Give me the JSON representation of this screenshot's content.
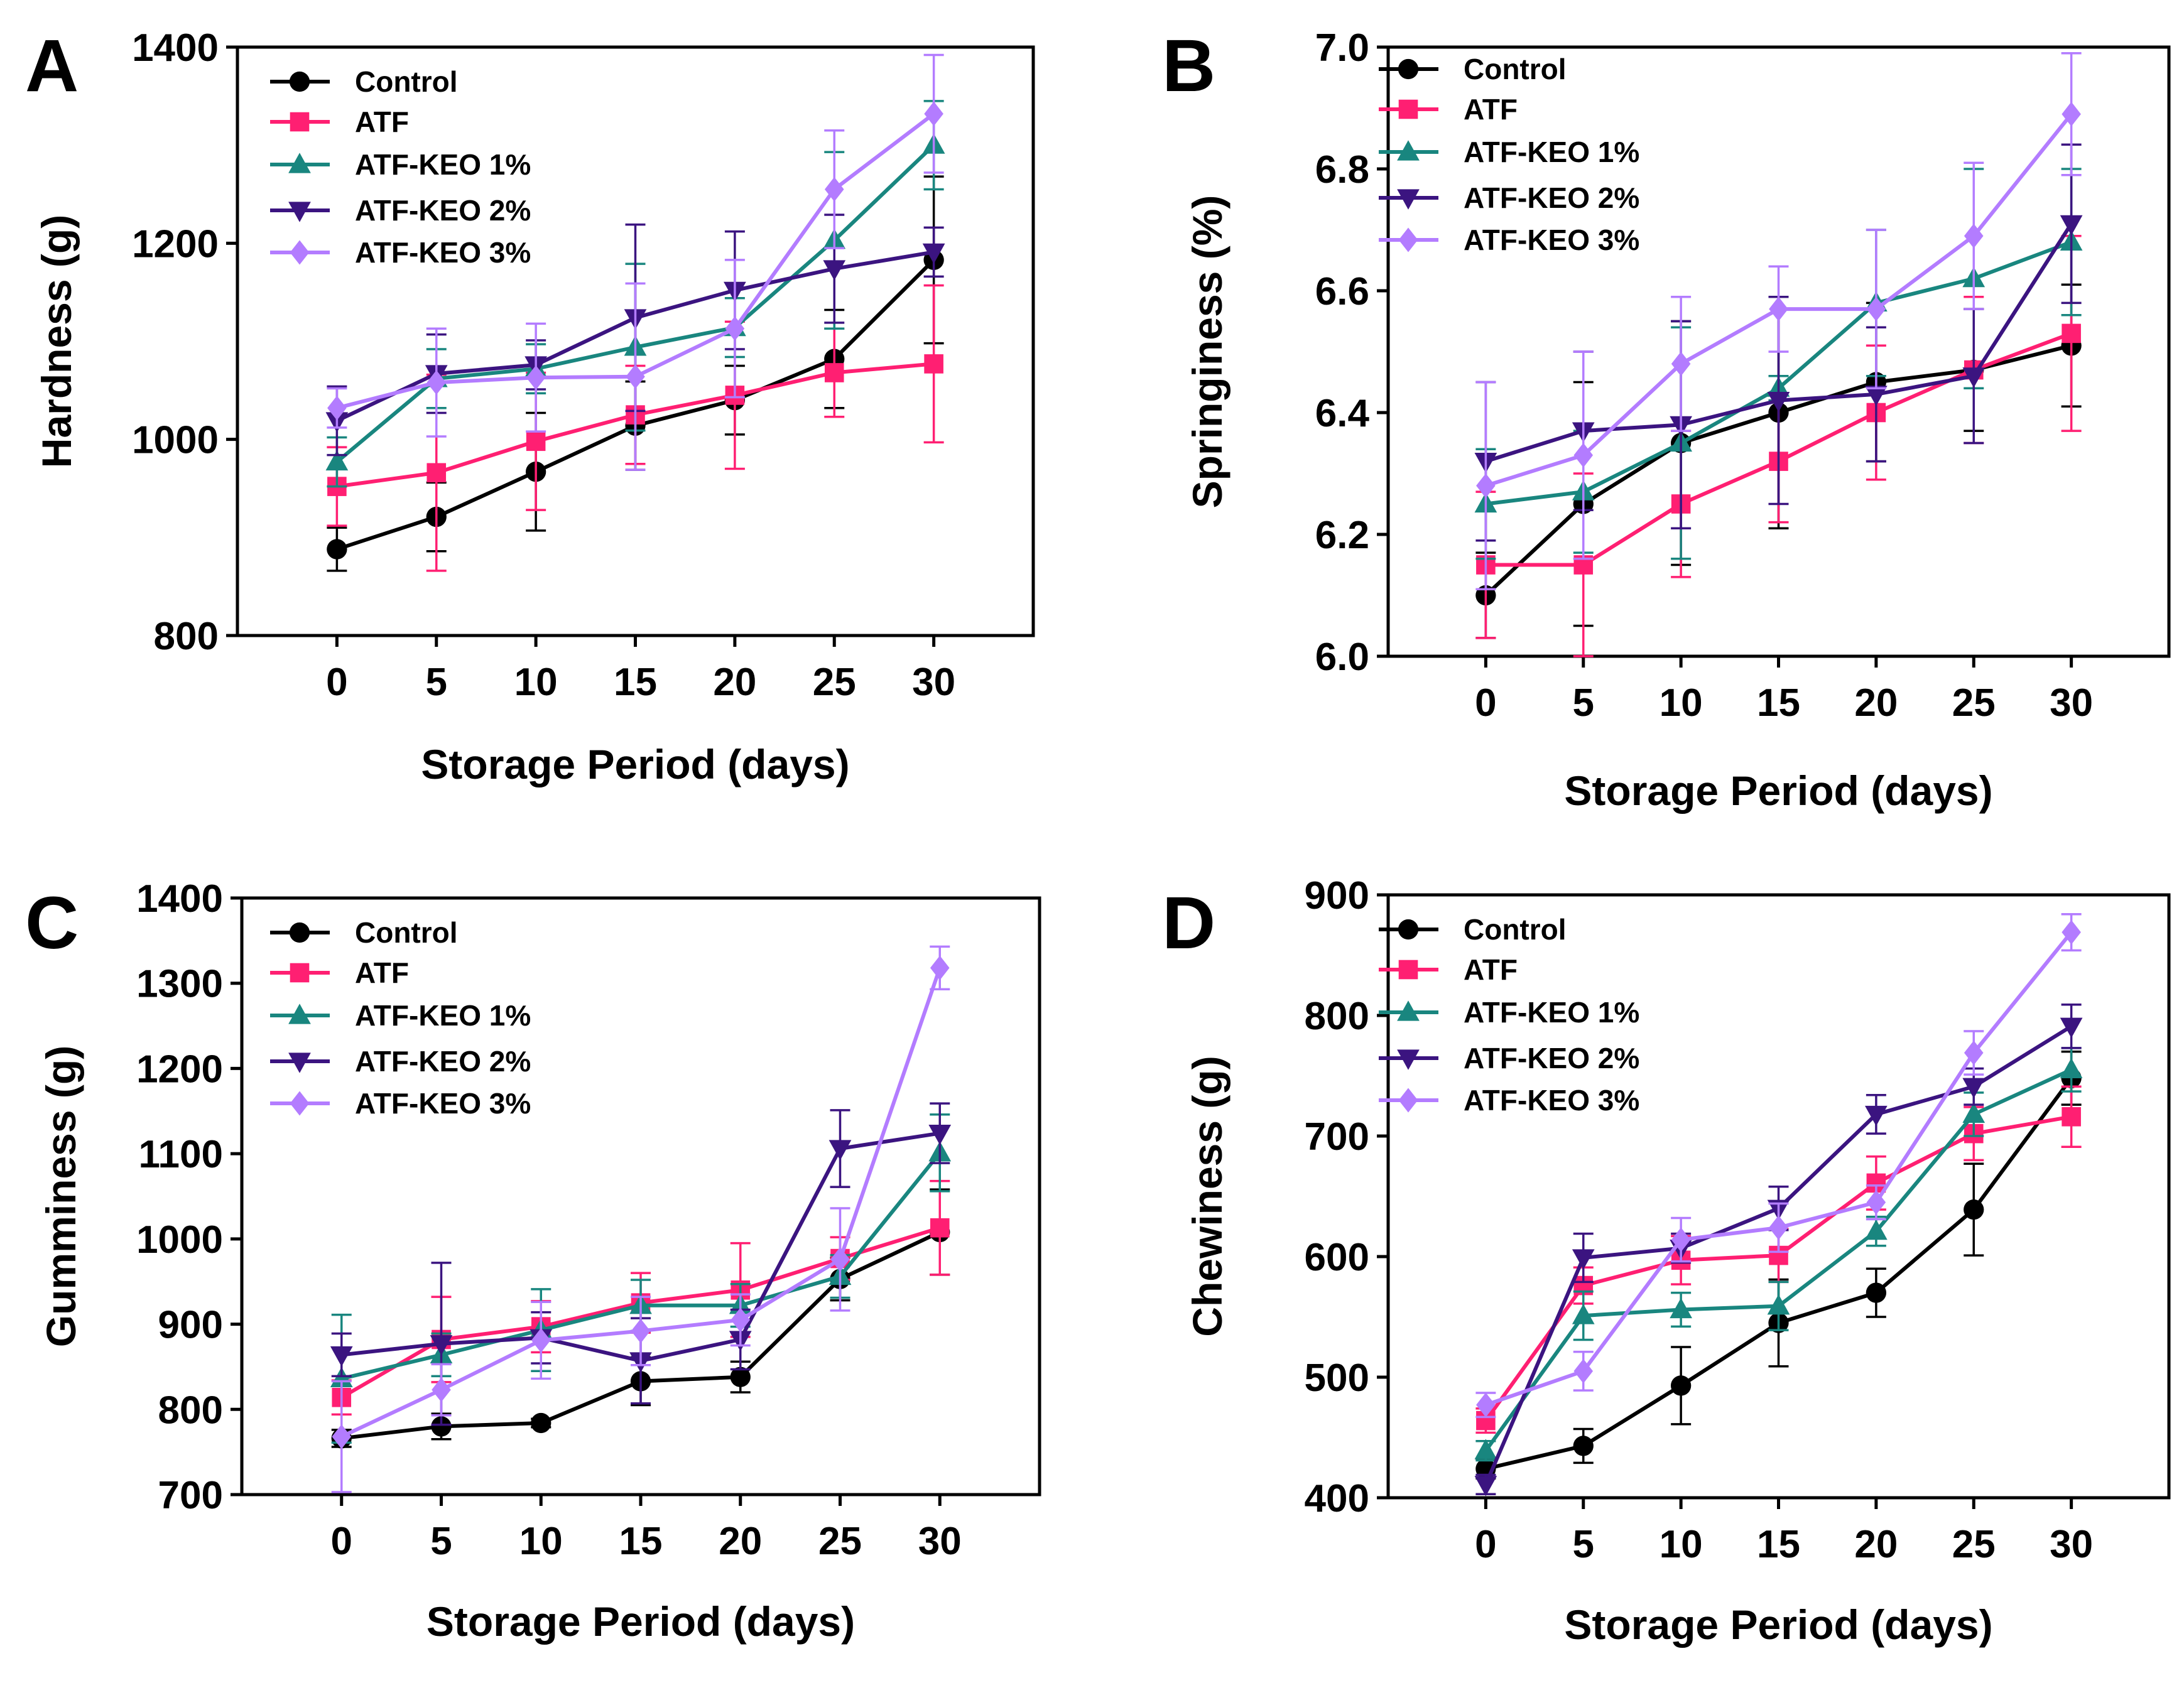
{
  "series_styles": [
    {
      "key": "control",
      "color": "#000000",
      "marker": "circle"
    },
    {
      "key": "atf",
      "color": "#ff1f72",
      "marker": "square"
    },
    {
      "key": "keo1",
      "color": "#19867f",
      "marker": "triangle-up"
    },
    {
      "key": "keo2",
      "color": "#3b1480",
      "marker": "triangle-down"
    },
    {
      "key": "keo3",
      "color": "#b37cff",
      "marker": "diamond"
    }
  ],
  "chart_data": [
    {
      "type": "line",
      "panel_label": "A",
      "xlabel": "Storage Period (days)",
      "ylabel": "Hardness (g)",
      "x": [
        0,
        5,
        10,
        15,
        20,
        25,
        30
      ],
      "xticks": [
        "0",
        "5",
        "10",
        "15",
        "20",
        "25",
        "30"
      ],
      "xlim": [
        -5,
        35
      ],
      "ylim": [
        800,
        1400
      ],
      "yticks": [
        800,
        1000,
        1200,
        1400
      ],
      "legend": "top-left",
      "grid": false,
      "series": [
        {
          "name": "Control",
          "values": [
            888,
            921,
            967,
            1014,
            1040,
            1082,
            1183
          ],
          "error": [
            22,
            35,
            60,
            45,
            35,
            50,
            85
          ]
        },
        {
          "name": "ATF",
          "values": [
            952,
            966,
            998,
            1025,
            1045,
            1068,
            1077
          ],
          "error": [
            40,
            100,
            70,
            50,
            75,
            45,
            80
          ]
        },
        {
          "name": "ATF-KEO 1%",
          "values": [
            977,
            1062,
            1072,
            1094,
            1114,
            1203,
            1300
          ],
          "error": [
            25,
            30,
            25,
            85,
            30,
            90,
            45
          ]
        },
        {
          "name": "ATF-KEO 2%",
          "values": [
            1019,
            1067,
            1076,
            1124,
            1152,
            1174,
            1191
          ],
          "error": [
            35,
            40,
            25,
            95,
            60,
            55,
            25
          ]
        },
        {
          "name": "ATF-KEO 3%",
          "values": [
            1032,
            1058,
            1063,
            1064,
            1113,
            1255,
            1332
          ],
          "error": [
            20,
            55,
            55,
            95,
            70,
            60,
            60
          ]
        }
      ]
    },
    {
      "type": "line",
      "panel_label": "B",
      "xlabel": "Storage Period (days)",
      "ylabel": "Springiness (%)",
      "x": [
        0,
        5,
        10,
        15,
        20,
        25,
        30
      ],
      "xticks": [
        "0",
        "5",
        "10",
        "15",
        "20",
        "25",
        "30"
      ],
      "xlim": [
        -5,
        35
      ],
      "ylim": [
        6.0,
        7.0
      ],
      "yticks": [
        "6.0",
        "6.2",
        "6.4",
        "6.6",
        "6.8",
        "7.0"
      ],
      "legend": "top-left",
      "grid": false,
      "series": [
        {
          "name": "Control",
          "values": [
            6.1,
            6.25,
            6.35,
            6.4,
            6.45,
            6.47,
            6.51
          ],
          "error": [
            0.07,
            0.2,
            0.2,
            0.19,
            0.13,
            0.1,
            0.1
          ]
        },
        {
          "name": "ATF",
          "values": [
            6.15,
            6.15,
            6.25,
            6.32,
            6.4,
            6.47,
            6.53
          ],
          "error": [
            0.12,
            0.15,
            0.12,
            0.1,
            0.11,
            0.12,
            0.16
          ]
        },
        {
          "name": "ATF-KEO 1%",
          "values": [
            6.25,
            6.27,
            6.35,
            6.44,
            6.58,
            6.62,
            6.68
          ],
          "error": [
            0.09,
            0.1,
            0.19,
            0.02,
            0.12,
            0.18,
            0.12
          ]
        },
        {
          "name": "ATF-KEO 2%",
          "values": [
            6.32,
            6.37,
            6.38,
            6.42,
            6.43,
            6.46,
            6.71
          ],
          "error": [
            0.13,
            0.13,
            0.17,
            0.17,
            0.11,
            0.11,
            0.13
          ]
        },
        {
          "name": "ATF-KEO 3%",
          "values": [
            6.28,
            6.33,
            6.48,
            6.57,
            6.57,
            6.69,
            6.89
          ],
          "error": [
            0.17,
            0.17,
            0.11,
            0.07,
            0.13,
            0.12,
            0.1
          ]
        }
      ]
    },
    {
      "type": "line",
      "panel_label": "C",
      "xlabel": "Storage Period (days)",
      "ylabel": "Gumminess (g)",
      "x": [
        0,
        5,
        10,
        15,
        20,
        25,
        30
      ],
      "xticks": [
        "0",
        "5",
        "10",
        "15",
        "20",
        "25",
        "30"
      ],
      "xlim": [
        -5,
        35
      ],
      "ylim": [
        700,
        1400
      ],
      "yticks": [
        700,
        800,
        900,
        1000,
        1100,
        1200,
        1300,
        1400
      ],
      "legend": "top-left",
      "grid": false,
      "series": [
        {
          "name": "Control",
          "values": [
            766,
            780,
            784,
            833,
            838,
            953,
            1008
          ],
          "error": [
            10,
            15,
            5,
            28,
            18,
            25,
            50
          ]
        },
        {
          "name": "ATF",
          "values": [
            814,
            882,
            897,
            925,
            940,
            977,
            1013
          ],
          "error": [
            20,
            50,
            30,
            35,
            55,
            25,
            55
          ]
        },
        {
          "name": "ATF-KEO 1%",
          "values": [
            836,
            864,
            893,
            922,
            922,
            956,
            1101
          ],
          "error": [
            75,
            25,
            48,
            30,
            25,
            25,
            45
          ]
        },
        {
          "name": "ATF-KEO 2%",
          "values": [
            864,
            877,
            884,
            857,
            882,
            1106,
            1124
          ],
          "error": [
            25,
            95,
            30,
            50,
            35,
            45,
            35
          ]
        },
        {
          "name": "ATF-KEO 3%",
          "values": [
            768,
            823,
            881,
            892,
            905,
            976,
            1318
          ],
          "error": [
            65,
            30,
            45,
            40,
            30,
            60,
            25
          ]
        }
      ]
    },
    {
      "type": "line",
      "panel_label": "D",
      "xlabel": "Storage Period (days)",
      "ylabel": "Chewiness (g)",
      "x": [
        0,
        5,
        10,
        15,
        20,
        25,
        30
      ],
      "xticks": [
        "0",
        "5",
        "10",
        "15",
        "20",
        "25",
        "30"
      ],
      "xlim": [
        -5,
        35
      ],
      "ylim": [
        400,
        900
      ],
      "yticks": [
        400,
        500,
        600,
        700,
        800,
        900
      ],
      "legend": "top-left",
      "grid": false,
      "series": [
        {
          "name": "Control",
          "values": [
            424,
            443,
            493,
            545,
            570,
            639,
            748
          ],
          "error": [
            8,
            14,
            32,
            36,
            20,
            38,
            22
          ]
        },
        {
          "name": "ATF",
          "values": [
            464,
            576,
            597,
            601,
            661,
            702,
            716
          ],
          "error": [
            10,
            15,
            20,
            22,
            22,
            22,
            25
          ]
        },
        {
          "name": "ATF-KEO 1%",
          "values": [
            439,
            551,
            556,
            559,
            621,
            718,
            755
          ],
          "error": [
            8,
            20,
            14,
            20,
            12,
            18,
            18
          ]
        },
        {
          "name": "ATF-KEO 2%",
          "values": [
            411,
            599,
            607,
            640,
            718,
            741,
            791
          ],
          "error": [
            8,
            20,
            12,
            18,
            16,
            15,
            18
          ]
        },
        {
          "name": "ATF-KEO 3%",
          "values": [
            477,
            505,
            614,
            624,
            645,
            769,
            869
          ],
          "error": [
            10,
            16,
            18,
            20,
            14,
            18,
            15
          ]
        }
      ]
    }
  ]
}
